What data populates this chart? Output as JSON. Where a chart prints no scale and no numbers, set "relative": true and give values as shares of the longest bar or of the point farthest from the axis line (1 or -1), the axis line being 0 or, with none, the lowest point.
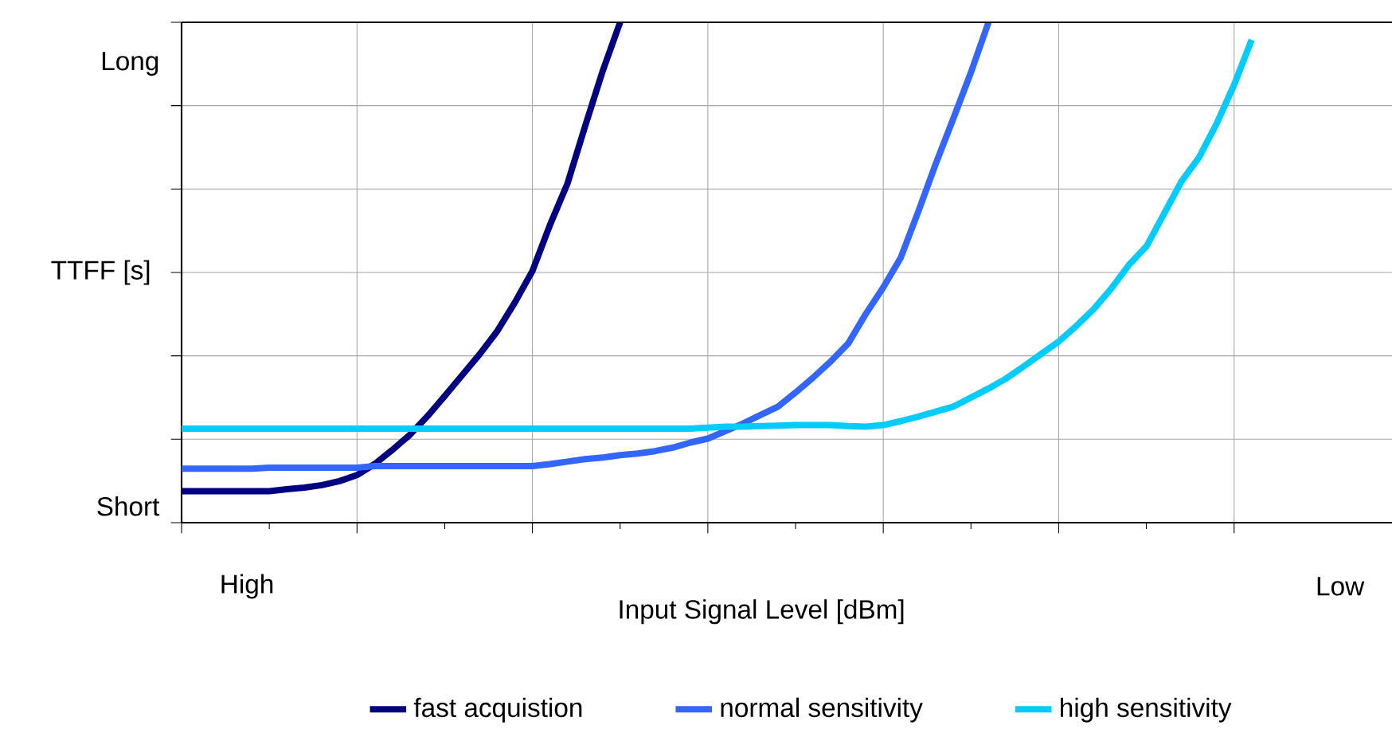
{
  "chart_data": {
    "type": "line",
    "relative": true,
    "xlabel": "Input Signal Level [dBm]",
    "ylabel": "TTFF [s]",
    "annotations": [
      "High",
      "Low",
      "Short",
      "Long"
    ],
    "grid": true,
    "legend": "bottom",
    "marker": "none",
    "line_style": "solid",
    "categories": [
      null,
      null,
      null,
      null,
      null,
      null,
      null,
      null,
      null,
      null,
      null,
      null,
      null,
      null,
      null,
      null,
      null,
      null,
      null,
      null,
      null,
      null,
      null,
      null,
      null,
      null,
      null,
      null,
      null,
      null,
      null,
      null,
      null,
      null,
      null,
      null,
      null,
      null,
      null,
      null,
      null,
      null,
      null,
      null,
      null,
      null,
      null,
      null,
      null,
      null,
      null,
      null,
      null,
      null,
      null,
      null,
      null,
      null,
      null,
      null,
      null,
      null,
      null,
      null,
      null,
      null,
      null,
      null,
      null,
      null
    ],
    "series": [
      {
        "name": "fast acquistion",
        "color": "#000080",
        "values": [
          0.063,
          0.063,
          0.063,
          0.063,
          0.063,
          0.063,
          0.067,
          0.07,
          0.075,
          0.083,
          0.095,
          0.117,
          0.145,
          0.175,
          0.212,
          0.253,
          0.295,
          0.337,
          0.383,
          0.44,
          0.503,
          0.595,
          0.678,
          0.792,
          0.902,
          1,
          null,
          null,
          null,
          null,
          null,
          null,
          null,
          null,
          null,
          null,
          null,
          null,
          null,
          null,
          null,
          null,
          null,
          null,
          null,
          null,
          null,
          null,
          null,
          null,
          null,
          null,
          null,
          null,
          null,
          null,
          null,
          null,
          null,
          null,
          null,
          null,
          null,
          null,
          null,
          null,
          null,
          null,
          null,
          null
        ]
      },
      {
        "name": "normal sensitivity",
        "color": "#3366ff",
        "values": [
          0.108,
          0.108,
          0.108,
          0.108,
          0.108,
          0.11,
          0.11,
          0.11,
          0.11,
          0.11,
          0.11,
          0.113,
          0.113,
          0.113,
          0.113,
          0.113,
          0.113,
          0.113,
          0.113,
          0.113,
          0.113,
          0.117,
          0.122,
          0.127,
          0.13,
          0.135,
          0.138,
          0.143,
          0.15,
          0.16,
          0.168,
          0.183,
          0.198,
          0.215,
          0.232,
          0.26,
          0.29,
          0.322,
          0.358,
          0.417,
          0.47,
          0.53,
          0.622,
          0.718,
          0.808,
          0.9,
          1,
          null,
          null,
          null,
          null,
          null,
          null,
          null,
          null,
          null,
          null,
          null,
          null,
          null,
          null,
          null,
          null,
          null,
          null,
          null,
          null,
          null,
          null,
          null
        ]
      },
      {
        "name": "high sensitivity",
        "color": "#00ccff",
        "values": [
          0.188,
          0.188,
          0.188,
          0.188,
          0.188,
          0.188,
          0.188,
          0.188,
          0.188,
          0.188,
          0.188,
          0.188,
          0.188,
          0.188,
          0.188,
          0.188,
          0.188,
          0.188,
          0.188,
          0.188,
          0.188,
          0.188,
          0.188,
          0.188,
          0.188,
          0.188,
          0.188,
          0.188,
          0.188,
          0.188,
          0.19,
          0.192,
          0.192,
          0.193,
          0.194,
          0.195,
          0.195,
          0.195,
          0.193,
          0.192,
          0.195,
          0.203,
          0.212,
          0.222,
          0.232,
          0.25,
          0.268,
          0.288,
          0.312,
          0.337,
          0.362,
          0.393,
          0.427,
          0.468,
          0.515,
          0.552,
          0.617,
          0.682,
          0.73,
          0.797,
          0.875,
          0.965,
          null,
          null,
          null,
          null,
          null,
          null,
          null,
          null
        ]
      }
    ]
  }
}
